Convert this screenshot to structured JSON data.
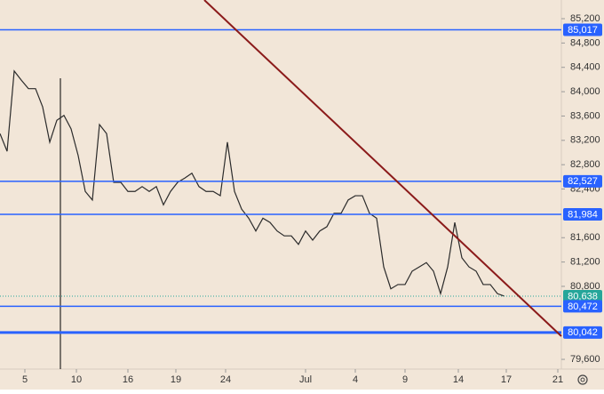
{
  "chart_data": {
    "type": "line",
    "background": "#f2e6d8",
    "x": [
      0,
      2,
      4,
      6,
      8,
      10,
      12,
      14,
      16,
      18,
      20,
      22,
      24,
      26,
      28,
      30,
      32,
      34,
      36,
      38,
      40,
      42,
      44,
      46,
      48,
      50,
      52,
      54,
      56,
      58,
      60,
      62,
      64,
      66,
      68,
      70,
      72,
      74,
      76,
      78,
      80,
      82,
      84,
      86,
      88,
      90,
      92,
      94,
      96,
      98,
      100,
      102,
      104,
      106,
      108,
      110,
      112,
      114,
      116,
      118,
      120,
      122,
      124,
      126,
      128,
      130,
      132,
      134,
      136,
      138,
      140,
      142
    ],
    "series": [
      {
        "color": "#2b2b2b",
        "values": [
          83310,
          83020,
          84340,
          84190,
          84050,
          84050,
          83750,
          83170,
          83530,
          83610,
          83390,
          82950,
          82360,
          82220,
          83460,
          83310,
          82510,
          82510,
          82360,
          82360,
          82440,
          82360,
          82440,
          82140,
          82360,
          82510,
          82580,
          82660,
          82440,
          82360,
          82360,
          82290,
          83170,
          82360,
          82070,
          81920,
          81710,
          81920,
          81850,
          81710,
          81630,
          81630,
          81490,
          81710,
          81560,
          81710,
          81780,
          82000,
          82000,
          82220,
          82290,
          82290,
          82000,
          81920,
          81120,
          80760,
          80830,
          80830,
          81050,
          81120,
          81190,
          81050,
          80680,
          81120,
          81850,
          81270,
          81120,
          81050,
          80830,
          80830,
          80680,
          80638
        ]
      }
    ],
    "xlim": [
      0,
      158
    ],
    "xticks": [
      {
        "value": 7,
        "label": "5"
      },
      {
        "value": 21.5,
        "label": "10"
      },
      {
        "value": 36,
        "label": "16"
      },
      {
        "value": 49.5,
        "label": "19"
      },
      {
        "value": 63.5,
        "label": "24"
      },
      {
        "value": 86,
        "label": "Jul"
      },
      {
        "value": 100,
        "label": "4"
      },
      {
        "value": 114,
        "label": "9"
      },
      {
        "value": 129,
        "label": "14"
      },
      {
        "value": 142.5,
        "label": "17"
      },
      {
        "value": 157,
        "label": "21"
      }
    ],
    "ylim": [
      79440,
      85507
    ],
    "yticks": [
      {
        "value": 79600,
        "label": "79,600"
      },
      {
        "value": 80800,
        "label": "80,800"
      },
      {
        "value": 81200,
        "label": "81,200"
      },
      {
        "value": 81600,
        "label": "81,600"
      },
      {
        "value": 82400,
        "label": "82,400"
      },
      {
        "value": 82800,
        "label": "82,800"
      },
      {
        "value": 83200,
        "label": "83,200"
      },
      {
        "value": 83600,
        "label": "83,600"
      },
      {
        "value": 84000,
        "label": "84,000"
      },
      {
        "value": 84400,
        "label": "84,400"
      },
      {
        "value": 84800,
        "label": "84,800"
      },
      {
        "value": 85200,
        "label": "85,200"
      }
    ],
    "levels": [
      {
        "value": 85017,
        "label": "85,017",
        "color": "#2962ff"
      },
      {
        "value": 82527,
        "label": "82,527",
        "color": "#2962ff"
      },
      {
        "value": 81984,
        "label": "81,984",
        "color": "#2962ff"
      },
      {
        "value": 80638,
        "label": "80,638",
        "color": "#26a69a"
      },
      {
        "value": 80472,
        "label": "80,472",
        "color": "#2962ff"
      },
      {
        "value": 80042,
        "label": "80,042",
        "color": "#2962ff"
      }
    ],
    "trendline": {
      "x": [
        57.5,
        158
      ],
      "values": [
        85507,
        79981
      ],
      "color": "#8b1a1a"
    },
    "vline": {
      "x": 17,
      "color": "#000000"
    }
  }
}
